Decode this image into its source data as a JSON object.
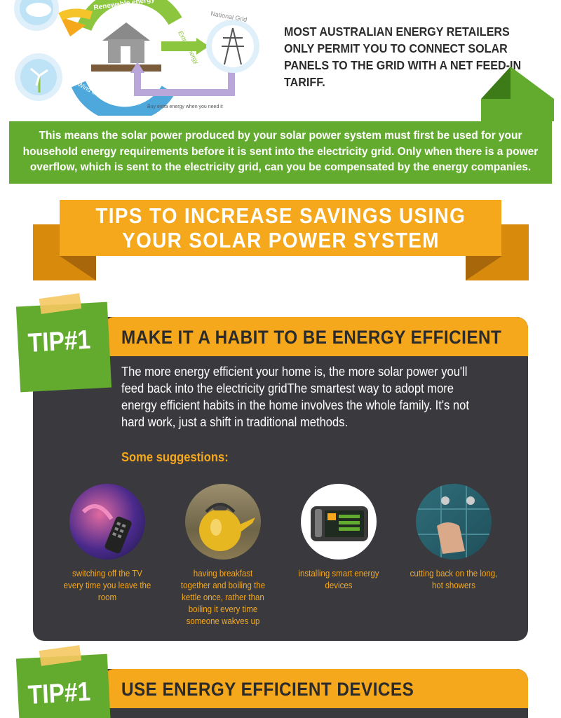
{
  "diagram": {
    "renewable_label": "Renewable energy",
    "solar_label": "Solar",
    "wind_label": "Wind energy",
    "extra_energy_label": "Extra Energy",
    "national_grid_label": "National Grid",
    "buy_label": "Buy extra energy when you need it"
  },
  "intro": {
    "text": "Most Australian energy retailers only permit you to connect solar panels to the grid with a net feed-in tariff."
  },
  "banner": {
    "text": "This means the solar power produced by your solar power system must first be used for your household energy requirements before it is sent into the electricity grid. Only when there is a power overflow, which is sent to the electricity grid, can you be compensated by the energy companies."
  },
  "tips_heading": {
    "line1": "TIPS TO INCREASE SAVINGS USING",
    "line2": "YOUR SOLAR POWER SYSTEM"
  },
  "tips": [
    {
      "badge": "TIP#1",
      "title": "MAKE IT A HABIT TO BE ENERGY EFFICIENT",
      "body": "The more energy efficient your home is, the more solar power you'll feed back into the electricity gridThe smartest way to adopt more energy efficient habits in the home involves the whole family. It's not hard work, just a shift in traditional methods.",
      "suggestions_label": "Some suggestions:",
      "suggestions": [
        {
          "icon": "tv-remote-icon",
          "caption": "switching off the TV every time you leave the room"
        },
        {
          "icon": "kettle-icon",
          "caption": "having breakfast together and boiling the kettle once, rather than boiling it every time someone wakves up"
        },
        {
          "icon": "smart-meter-icon",
          "caption": "installing smart energy devices"
        },
        {
          "icon": "shower-icon",
          "caption": "cutting back on the long, hot showers"
        }
      ]
    },
    {
      "badge": "TIP#1",
      "title": "USE ENERGY EFFICIENT DEVICES"
    }
  ],
  "colors": {
    "green": "#63ab2e",
    "orange": "#f5a81c",
    "dark_card": "#3a393e"
  }
}
